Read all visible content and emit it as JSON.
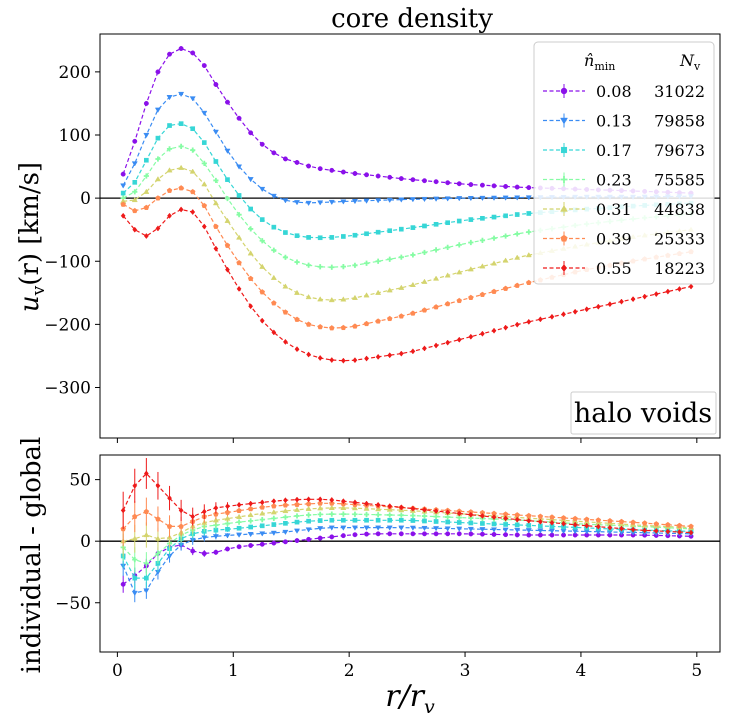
{
  "chart_data": {
    "type": "line",
    "title": "core density",
    "annotation": "halo voids",
    "xlabel": "r/r",
    "xlabel_sub": "v",
    "xlim": [
      -0.15,
      5.2
    ],
    "xticks": [
      0,
      1,
      2,
      3,
      4,
      5
    ],
    "xtick_labels": [
      "0",
      "1",
      "2",
      "3",
      "4",
      "5"
    ],
    "legend": {
      "position": "top-right",
      "header_nmin": "n̂",
      "header_nmin_sub": "min",
      "header_nv": "N",
      "header_nv_sub": "v"
    },
    "colors": [
      "#8a10ea",
      "#3a8cf3",
      "#36d6d6",
      "#86fca4",
      "#d4d46e",
      "#ff8a52",
      "#ee1a1a"
    ],
    "markers": [
      "circle",
      "triangle-down",
      "square",
      "plus",
      "triangle-up",
      "pentagon",
      "diamond"
    ],
    "series": [
      {
        "nmin": "0.08",
        "Nv": "31022"
      },
      {
        "nmin": "0.13",
        "Nv": "79858"
      },
      {
        "nmin": "0.17",
        "Nv": "79673"
      },
      {
        "nmin": "0.23",
        "Nv": "75585"
      },
      {
        "nmin": "0.31",
        "Nv": "44838"
      },
      {
        "nmin": "0.39",
        "Nv": "25333"
      },
      {
        "nmin": "0.55",
        "Nv": "18223"
      }
    ],
    "top": {
      "ylabel": "u",
      "ylabel_sub": "v",
      "ylabel_rest": "(r) [km/s]",
      "ylim": [
        -380,
        260
      ],
      "yticks": [
        200,
        100,
        0,
        -100,
        -200,
        -300
      ],
      "ytick_labels": [
        "200",
        "100",
        "0",
        "−100",
        "−200",
        "−300"
      ],
      "curves": [
        [
          [
            0.05,
            38
          ],
          [
            0.15,
            90
          ],
          [
            0.25,
            150
          ],
          [
            0.35,
            200
          ],
          [
            0.45,
            228
          ],
          [
            0.55,
            237
          ],
          [
            0.65,
            230
          ],
          [
            0.75,
            210
          ],
          [
            0.85,
            180
          ],
          [
            1.0,
            138
          ],
          [
            1.2,
            92
          ],
          [
            1.4,
            65
          ],
          [
            1.7,
            48
          ],
          [
            2.0,
            40
          ],
          [
            2.5,
            30
          ],
          [
            3.0,
            22
          ],
          [
            3.5,
            17
          ],
          [
            4.0,
            14
          ],
          [
            4.5,
            11
          ],
          [
            4.95,
            8
          ]
        ],
        [
          [
            0.05,
            20
          ],
          [
            0.15,
            55
          ],
          [
            0.25,
            100
          ],
          [
            0.35,
            140
          ],
          [
            0.45,
            160
          ],
          [
            0.55,
            165
          ],
          [
            0.65,
            158
          ],
          [
            0.75,
            135
          ],
          [
            0.85,
            105
          ],
          [
            1.0,
            60
          ],
          [
            1.2,
            20
          ],
          [
            1.4,
            -2
          ],
          [
            1.6,
            -8
          ],
          [
            2.0,
            -5
          ],
          [
            2.5,
            -2
          ],
          [
            3.0,
            0
          ],
          [
            3.5,
            1
          ],
          [
            4.0,
            2
          ],
          [
            4.5,
            2
          ],
          [
            4.95,
            3
          ]
        ],
        [
          [
            0.05,
            8
          ],
          [
            0.15,
            25
          ],
          [
            0.25,
            60
          ],
          [
            0.35,
            95
          ],
          [
            0.45,
            115
          ],
          [
            0.55,
            118
          ],
          [
            0.65,
            110
          ],
          [
            0.75,
            88
          ],
          [
            0.85,
            58
          ],
          [
            1.0,
            15
          ],
          [
            1.2,
            -28
          ],
          [
            1.4,
            -52
          ],
          [
            1.6,
            -62
          ],
          [
            1.8,
            -63
          ],
          [
            2.0,
            -60
          ],
          [
            2.5,
            -48
          ],
          [
            3.0,
            -35
          ],
          [
            3.5,
            -25
          ],
          [
            4.0,
            -18
          ],
          [
            4.5,
            -12
          ],
          [
            4.95,
            -8
          ]
        ],
        [
          [
            0.05,
            0
          ],
          [
            0.15,
            10
          ],
          [
            0.25,
            35
          ],
          [
            0.35,
            62
          ],
          [
            0.45,
            78
          ],
          [
            0.55,
            82
          ],
          [
            0.65,
            76
          ],
          [
            0.75,
            55
          ],
          [
            0.85,
            28
          ],
          [
            1.0,
            -15
          ],
          [
            1.2,
            -60
          ],
          [
            1.4,
            -90
          ],
          [
            1.6,
            -105
          ],
          [
            1.8,
            -110
          ],
          [
            2.0,
            -108
          ],
          [
            2.5,
            -92
          ],
          [
            3.0,
            -72
          ],
          [
            3.5,
            -55
          ],
          [
            4.0,
            -42
          ],
          [
            4.5,
            -32
          ],
          [
            4.95,
            -25
          ]
        ],
        [
          [
            0.05,
            -5
          ],
          [
            0.15,
            -3
          ],
          [
            0.25,
            10
          ],
          [
            0.35,
            30
          ],
          [
            0.45,
            44
          ],
          [
            0.55,
            48
          ],
          [
            0.65,
            42
          ],
          [
            0.75,
            22
          ],
          [
            0.85,
            -8
          ],
          [
            1.0,
            -50
          ],
          [
            1.2,
            -100
          ],
          [
            1.4,
            -135
          ],
          [
            1.6,
            -155
          ],
          [
            1.8,
            -162
          ],
          [
            2.0,
            -160
          ],
          [
            2.5,
            -140
          ],
          [
            3.0,
            -115
          ],
          [
            3.5,
            -92
          ],
          [
            4.0,
            -75
          ],
          [
            4.5,
            -60
          ],
          [
            4.95,
            -50
          ]
        ],
        [
          [
            0.05,
            -10
          ],
          [
            0.15,
            -20
          ],
          [
            0.25,
            -15
          ],
          [
            0.35,
            0
          ],
          [
            0.45,
            12
          ],
          [
            0.55,
            16
          ],
          [
            0.65,
            10
          ],
          [
            0.75,
            -12
          ],
          [
            0.85,
            -45
          ],
          [
            1.0,
            -90
          ],
          [
            1.2,
            -140
          ],
          [
            1.4,
            -175
          ],
          [
            1.6,
            -198
          ],
          [
            1.8,
            -206
          ],
          [
            2.0,
            -205
          ],
          [
            2.5,
            -185
          ],
          [
            3.0,
            -160
          ],
          [
            3.5,
            -136
          ],
          [
            4.0,
            -115
          ],
          [
            4.5,
            -98
          ],
          [
            4.95,
            -85
          ]
        ],
        [
          [
            0.05,
            -28
          ],
          [
            0.15,
            -50
          ],
          [
            0.25,
            -60
          ],
          [
            0.35,
            -48
          ],
          [
            0.45,
            -28
          ],
          [
            0.55,
            -18
          ],
          [
            0.65,
            -22
          ],
          [
            0.75,
            -45
          ],
          [
            0.85,
            -80
          ],
          [
            1.0,
            -130
          ],
          [
            1.2,
            -185
          ],
          [
            1.4,
            -222
          ],
          [
            1.6,
            -245
          ],
          [
            1.8,
            -256
          ],
          [
            2.0,
            -258
          ],
          [
            2.5,
            -245
          ],
          [
            3.0,
            -222
          ],
          [
            3.5,
            -198
          ],
          [
            4.0,
            -178
          ],
          [
            4.5,
            -158
          ],
          [
            4.95,
            -140
          ]
        ]
      ]
    },
    "bottom": {
      "ylabel": "individual - global",
      "ylim": [
        -90,
        70
      ],
      "yticks": [
        50,
        0,
        -50
      ],
      "ytick_labels": [
        "50",
        "0",
        "−50"
      ],
      "curves": [
        [
          [
            0.05,
            -35
          ],
          [
            0.15,
            -28
          ],
          [
            0.25,
            -20
          ],
          [
            0.35,
            -10
          ],
          [
            0.45,
            -5
          ],
          [
            0.55,
            -3
          ],
          [
            0.65,
            -8
          ],
          [
            0.75,
            -10
          ],
          [
            0.85,
            -9
          ],
          [
            1.0,
            -5
          ],
          [
            1.2,
            -3
          ],
          [
            1.4,
            -1
          ],
          [
            1.6,
            1
          ],
          [
            1.8,
            3
          ],
          [
            2.0,
            5
          ],
          [
            2.2,
            6
          ],
          [
            2.5,
            6
          ],
          [
            3.0,
            6
          ],
          [
            3.5,
            5
          ],
          [
            4.0,
            5
          ],
          [
            4.5,
            5
          ],
          [
            4.95,
            4
          ]
        ],
        [
          [
            0.05,
            -20
          ],
          [
            0.15,
            -42
          ],
          [
            0.25,
            -40
          ],
          [
            0.35,
            -25
          ],
          [
            0.45,
            -12
          ],
          [
            0.55,
            -3
          ],
          [
            0.65,
            1
          ],
          [
            0.75,
            3
          ],
          [
            0.85,
            4
          ],
          [
            1.0,
            5
          ],
          [
            1.2,
            6
          ],
          [
            1.4,
            7
          ],
          [
            1.6,
            9
          ],
          [
            1.8,
            11
          ],
          [
            2.0,
            11
          ],
          [
            2.5,
            11
          ],
          [
            3.0,
            10
          ],
          [
            3.5,
            9
          ],
          [
            4.0,
            8
          ],
          [
            4.5,
            7
          ],
          [
            4.95,
            6
          ]
        ],
        [
          [
            0.05,
            -12
          ],
          [
            0.15,
            -30
          ],
          [
            0.25,
            -30
          ],
          [
            0.35,
            -18
          ],
          [
            0.45,
            -6
          ],
          [
            0.55,
            2
          ],
          [
            0.65,
            6
          ],
          [
            0.75,
            8
          ],
          [
            0.85,
            9
          ],
          [
            1.0,
            10
          ],
          [
            1.2,
            12
          ],
          [
            1.4,
            14
          ],
          [
            1.6,
            16
          ],
          [
            1.8,
            17
          ],
          [
            2.0,
            17
          ],
          [
            2.5,
            17
          ],
          [
            3.0,
            15
          ],
          [
            3.5,
            13
          ],
          [
            4.0,
            11
          ],
          [
            4.5,
            9
          ],
          [
            4.95,
            8
          ]
        ],
        [
          [
            0.05,
            -5
          ],
          [
            0.15,
            -15
          ],
          [
            0.25,
            -18
          ],
          [
            0.35,
            -10
          ],
          [
            0.45,
            -2
          ],
          [
            0.55,
            5
          ],
          [
            0.65,
            9
          ],
          [
            0.75,
            12
          ],
          [
            0.85,
            13
          ],
          [
            1.0,
            15
          ],
          [
            1.2,
            17
          ],
          [
            1.4,
            19
          ],
          [
            1.6,
            21
          ],
          [
            1.8,
            22
          ],
          [
            2.0,
            22
          ],
          [
            2.5,
            21
          ],
          [
            3.0,
            19
          ],
          [
            3.5,
            17
          ],
          [
            4.0,
            14
          ],
          [
            4.5,
            12
          ],
          [
            4.95,
            10
          ]
        ],
        [
          [
            0.05,
            0
          ],
          [
            0.15,
            2
          ],
          [
            0.25,
            5
          ],
          [
            0.35,
            2
          ],
          [
            0.45,
            3
          ],
          [
            0.55,
            7
          ],
          [
            0.65,
            12
          ],
          [
            0.75,
            15
          ],
          [
            0.85,
            17
          ],
          [
            1.0,
            19
          ],
          [
            1.2,
            22
          ],
          [
            1.4,
            24
          ],
          [
            1.6,
            26
          ],
          [
            1.8,
            27
          ],
          [
            2.0,
            27
          ],
          [
            2.5,
            25
          ],
          [
            3.0,
            22
          ],
          [
            3.5,
            19
          ],
          [
            4.0,
            16
          ],
          [
            4.5,
            13
          ],
          [
            4.95,
            11
          ]
        ],
        [
          [
            0.05,
            10
          ],
          [
            0.15,
            20
          ],
          [
            0.25,
            24
          ],
          [
            0.35,
            18
          ],
          [
            0.45,
            12
          ],
          [
            0.55,
            12
          ],
          [
            0.65,
            16
          ],
          [
            0.75,
            20
          ],
          [
            0.85,
            22
          ],
          [
            1.0,
            24
          ],
          [
            1.2,
            27
          ],
          [
            1.4,
            29
          ],
          [
            1.6,
            30
          ],
          [
            1.8,
            31
          ],
          [
            2.0,
            30
          ],
          [
            2.5,
            27
          ],
          [
            3.0,
            24
          ],
          [
            3.5,
            21
          ],
          [
            4.0,
            18
          ],
          [
            4.5,
            15
          ],
          [
            4.95,
            12
          ]
        ],
        [
          [
            0.05,
            25
          ],
          [
            0.15,
            45
          ],
          [
            0.25,
            55
          ],
          [
            0.35,
            45
          ],
          [
            0.45,
            35
          ],
          [
            0.55,
            25
          ],
          [
            0.65,
            20
          ],
          [
            0.75,
            24
          ],
          [
            0.85,
            27
          ],
          [
            1.0,
            29
          ],
          [
            1.2,
            31
          ],
          [
            1.4,
            33
          ],
          [
            1.6,
            34
          ],
          [
            1.8,
            34
          ],
          [
            2.0,
            32
          ],
          [
            2.5,
            27
          ],
          [
            3.0,
            22
          ],
          [
            3.5,
            17
          ],
          [
            4.0,
            13
          ],
          [
            4.5,
            9
          ],
          [
            4.95,
            7
          ]
        ]
      ]
    }
  }
}
